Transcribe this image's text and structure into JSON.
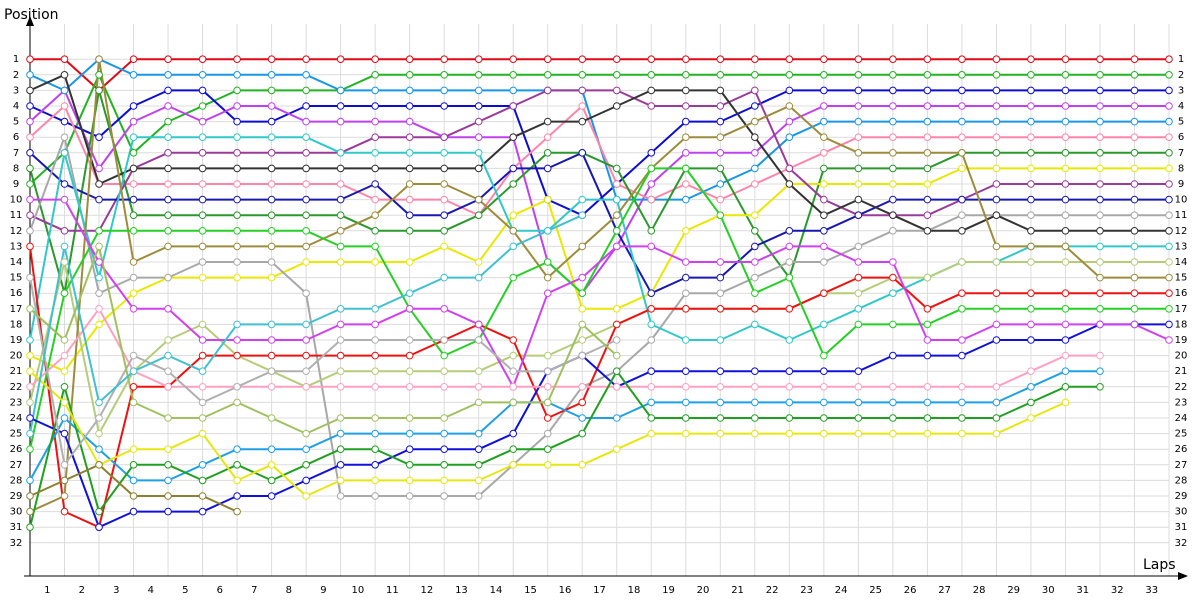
{
  "chart_data": {
    "type": "line",
    "y_axis_title": "Position",
    "x_axis_title": "Laps",
    "xlim": [
      0,
      33
    ],
    "ylim": [
      -1,
      34
    ],
    "y_reversed": true,
    "grid": true,
    "xticks": [
      1,
      2,
      3,
      4,
      5,
      6,
      7,
      8,
      9,
      10,
      11,
      12,
      13,
      14,
      15,
      16,
      17,
      18,
      19,
      20,
      21,
      22,
      23,
      24,
      25,
      26,
      27,
      28,
      29,
      30,
      31,
      32,
      33
    ],
    "yticks": [
      1,
      2,
      3,
      4,
      5,
      6,
      7,
      8,
      9,
      10,
      11,
      12,
      13,
      14,
      15,
      16,
      17,
      18,
      19,
      20,
      21,
      22,
      23,
      24,
      25,
      26,
      27,
      28,
      29,
      30,
      31,
      32
    ],
    "x": [
      0,
      1,
      2,
      3,
      4,
      5,
      6,
      7,
      8,
      9,
      10,
      11,
      12,
      13,
      14,
      15,
      16,
      17,
      18,
      19,
      20,
      21,
      22,
      23,
      24,
      25,
      26,
      27,
      28,
      29,
      30,
      31,
      32,
      33
    ],
    "series": [
      {
        "color": "#e30613",
        "values": [
          1,
          1,
          3,
          1,
          1,
          1,
          1,
          1,
          1,
          1,
          1,
          1,
          1,
          1,
          1,
          1,
          1,
          1,
          1,
          1,
          1,
          1,
          1,
          1,
          1,
          1,
          1,
          1,
          1,
          1,
          1,
          1,
          1,
          1
        ]
      },
      {
        "color": "#21b421",
        "values": [
          9,
          7,
          2,
          7,
          5,
          4,
          3,
          3,
          3,
          3,
          2,
          2,
          2,
          2,
          2,
          2,
          2,
          2,
          2,
          2,
          2,
          2,
          2,
          2,
          2,
          2,
          2,
          2,
          2,
          2,
          2,
          2,
          2,
          2
        ]
      },
      {
        "color": "#0c0cd4",
        "values": [
          4,
          5,
          6,
          4,
          3,
          3,
          5,
          5,
          4,
          4,
          4,
          4,
          4,
          4,
          4,
          10,
          11,
          9,
          7,
          5,
          5,
          4,
          3,
          3,
          3,
          3,
          3,
          3,
          3,
          3,
          3,
          3,
          3,
          3
        ]
      },
      {
        "color": "#c040f0",
        "values": [
          5,
          3,
          8,
          5,
          4,
          5,
          4,
          4,
          5,
          5,
          5,
          5,
          6,
          6,
          6,
          14,
          16,
          13,
          9,
          7,
          7,
          7,
          5,
          4,
          4,
          4,
          4,
          4,
          4,
          4,
          4,
          4,
          4,
          4
        ]
      },
      {
        "color": "#1896e8",
        "values": [
          2,
          3,
          1,
          2,
          2,
          2,
          2,
          2,
          2,
          3,
          3,
          3,
          3,
          3,
          3,
          3,
          3,
          10,
          10,
          10,
          9,
          8,
          6,
          5,
          5,
          5,
          5,
          5,
          5,
          5,
          5,
          5,
          5,
          5
        ]
      },
      {
        "color": "#ff85a8",
        "values": [
          6,
          4,
          9,
          9,
          9,
          9,
          9,
          9,
          9,
          9,
          10,
          10,
          10,
          11,
          8,
          6,
          4,
          9,
          10,
          9,
          10,
          9,
          8,
          7,
          6,
          6,
          6,
          6,
          6,
          6,
          6,
          6,
          6,
          6
        ]
      },
      {
        "color": "#2a982a",
        "values": [
          8,
          16,
          3,
          11,
          11,
          11,
          11,
          11,
          11,
          11,
          12,
          12,
          12,
          11,
          9,
          7,
          7,
          8,
          12,
          8,
          8,
          12,
          15,
          8,
          8,
          8,
          8,
          7,
          7,
          7,
          7,
          7,
          7,
          7
        ]
      },
      {
        "color": "#e8e800",
        "values": [
          20,
          21,
          18,
          16,
          15,
          15,
          15,
          15,
          14,
          14,
          14,
          14,
          13,
          14,
          11,
          10,
          17,
          17,
          16,
          12,
          11,
          11,
          9,
          9,
          9,
          9,
          9,
          8,
          8,
          8,
          8,
          8,
          8,
          8
        ]
      },
      {
        "color": "#9a3a9a",
        "values": [
          11,
          12,
          12,
          8,
          7,
          7,
          7,
          7,
          7,
          7,
          6,
          6,
          6,
          5,
          4,
          3,
          3,
          3,
          4,
          4,
          4,
          3,
          8,
          10,
          11,
          11,
          11,
          10,
          9,
          9,
          9,
          9,
          9,
          9
        ]
      },
      {
        "color": "#1818b0",
        "values": [
          7,
          9,
          10,
          10,
          10,
          10,
          10,
          10,
          10,
          10,
          9,
          11,
          11,
          10,
          8,
          8,
          7,
          12,
          16,
          15,
          15,
          13,
          12,
          12,
          11,
          10,
          10,
          10,
          10,
          10,
          10,
          10,
          10,
          10
        ]
      },
      {
        "color": "#a8a8a8",
        "values": [
          12,
          6,
          16,
          15,
          15,
          14,
          14,
          14,
          16,
          29,
          29,
          29,
          29,
          29,
          27,
          25,
          22,
          21,
          19,
          16,
          16,
          15,
          14,
          14,
          13,
          12,
          12,
          11,
          11,
          11,
          11,
          11,
          11,
          11
        ]
      },
      {
        "color": "#333333",
        "values": [
          3,
          2,
          9,
          8,
          8,
          8,
          8,
          8,
          8,
          8,
          8,
          8,
          8,
          8,
          6,
          5,
          5,
          4,
          3,
          3,
          3,
          6,
          9,
          11,
          10,
          11,
          12,
          12,
          11,
          12,
          12,
          12,
          12,
          12
        ]
      },
      {
        "color": "#30c8c8",
        "values": [
          19,
          7,
          15,
          6,
          6,
          6,
          6,
          6,
          6,
          7,
          7,
          7,
          7,
          7,
          12,
          12,
          10,
          10,
          18,
          19,
          19,
          18,
          19,
          18,
          17,
          16,
          15,
          14,
          14,
          13,
          13,
          13,
          13,
          13
        ]
      },
      {
        "color": "#b5cc78",
        "values": [
          23,
          14,
          25,
          21,
          19,
          18,
          20,
          21,
          22,
          21,
          21,
          21,
          21,
          21,
          20,
          20,
          19,
          18,
          17,
          17,
          17,
          17,
          17,
          16,
          16,
          15,
          15,
          14,
          14,
          14,
          14,
          14,
          14,
          14
        ]
      },
      {
        "color": "#9c8c3c",
        "values": [
          30,
          29,
          1,
          14,
          13,
          13,
          13,
          13,
          13,
          12,
          11,
          9,
          9,
          10,
          12,
          15,
          13,
          11,
          8,
          6,
          6,
          5,
          4,
          6,
          7,
          7,
          7,
          7,
          13,
          13,
          13,
          15,
          15,
          15
        ]
      },
      {
        "color": "#f01010",
        "values": [
          13,
          30,
          31,
          22,
          22,
          20,
          20,
          20,
          20,
          20,
          20,
          20,
          19,
          18,
          19,
          24,
          23,
          18,
          17,
          17,
          17,
          17,
          17,
          16,
          15,
          15,
          17,
          16,
          16,
          16,
          16,
          16,
          16,
          16
        ]
      },
      {
        "color": "#24d024",
        "values": [
          26,
          16,
          12,
          12,
          12,
          12,
          12,
          12,
          12,
          13,
          13,
          17,
          20,
          19,
          15,
          14,
          16,
          12,
          8,
          8,
          11,
          16,
          15,
          20,
          18,
          18,
          18,
          17,
          17,
          17,
          17,
          17,
          17,
          17
        ]
      },
      {
        "color": "#1010dd",
        "values": [
          24,
          25,
          31,
          30,
          30,
          30,
          29,
          29,
          28,
          27,
          27,
          26,
          26,
          26,
          25,
          21,
          20,
          22,
          21,
          21,
          21,
          21,
          21,
          21,
          21,
          20,
          20,
          20,
          19,
          19,
          19,
          18,
          18,
          18
        ]
      },
      {
        "color": "#d040f0",
        "values": [
          10,
          10,
          14,
          17,
          17,
          19,
          19,
          19,
          19,
          18,
          18,
          17,
          17,
          18,
          22,
          16,
          15,
          13,
          13,
          14,
          14,
          14,
          13,
          13,
          14,
          14,
          19,
          19,
          18,
          18,
          18,
          18,
          18,
          19
        ]
      },
      {
        "color": "#ffa0c0",
        "values": [
          22,
          20,
          17,
          21,
          22,
          22,
          22,
          22,
          22,
          22,
          22,
          22,
          22,
          22,
          22,
          22,
          22,
          22,
          22,
          22,
          22,
          22,
          22,
          22,
          22,
          22,
          22,
          22,
          22,
          21,
          20,
          20,
          null,
          null
        ]
      },
      {
        "color": "#1ea0e6",
        "values": [
          28,
          24,
          26,
          28,
          28,
          27,
          26,
          26,
          26,
          25,
          25,
          25,
          25,
          25,
          23,
          23,
          24,
          24,
          23,
          23,
          23,
          23,
          23,
          23,
          23,
          23,
          23,
          23,
          23,
          22,
          21,
          21,
          null,
          null
        ]
      },
      {
        "color": "#20a020",
        "values": [
          31,
          22,
          30,
          27,
          27,
          28,
          27,
          28,
          27,
          26,
          26,
          27,
          27,
          27,
          26,
          26,
          25,
          21,
          24,
          24,
          24,
          24,
          24,
          24,
          24,
          24,
          24,
          24,
          24,
          23,
          22,
          22,
          null,
          null
        ]
      },
      {
        "color": "#e6e610",
        "values": [
          21,
          23,
          27,
          26,
          26,
          25,
          28,
          27,
          29,
          28,
          28,
          28,
          28,
          28,
          27,
          27,
          27,
          26,
          25,
          25,
          25,
          25,
          25,
          25,
          25,
          25,
          25,
          25,
          25,
          24,
          23,
          null,
          null,
          null
        ]
      },
      {
        "color": "#b0b0b0",
        "values": [
          15,
          27,
          24,
          20,
          21,
          23,
          22,
          21,
          21,
          19,
          19,
          19,
          19,
          19,
          21,
          21,
          20,
          19,
          null,
          null,
          null,
          null,
          null,
          null,
          null,
          null,
          null,
          null,
          null,
          null,
          null,
          null,
          null,
          null
        ]
      },
      {
        "color": "#8c8030",
        "values": [
          29,
          28,
          27,
          29,
          29,
          29,
          30,
          null,
          null,
          null,
          null,
          null,
          null,
          null,
          null,
          null,
          null,
          null,
          null,
          null,
          null,
          null,
          null,
          null,
          null,
          null,
          null,
          null,
          null,
          null,
          null,
          null,
          null,
          null
        ]
      },
      {
        "color": "#a0c060",
        "values": [
          17,
          19,
          13,
          23,
          24,
          24,
          23,
          24,
          25,
          24,
          24,
          24,
          24,
          23,
          23,
          23,
          18,
          20,
          null,
          null,
          null,
          null,
          null,
          null,
          null,
          null,
          null,
          null,
          null,
          null,
          null,
          null,
          null,
          null
        ]
      },
      {
        "color": "#40c0d0",
        "values": [
          25,
          13,
          23,
          21,
          20,
          21,
          18,
          18,
          18,
          17,
          17,
          16,
          15,
          15,
          13,
          12,
          11,
          null,
          null,
          null,
          null,
          null,
          null,
          null,
          null,
          null,
          null,
          null,
          null,
          null,
          null,
          null,
          null,
          null
        ]
      }
    ]
  }
}
